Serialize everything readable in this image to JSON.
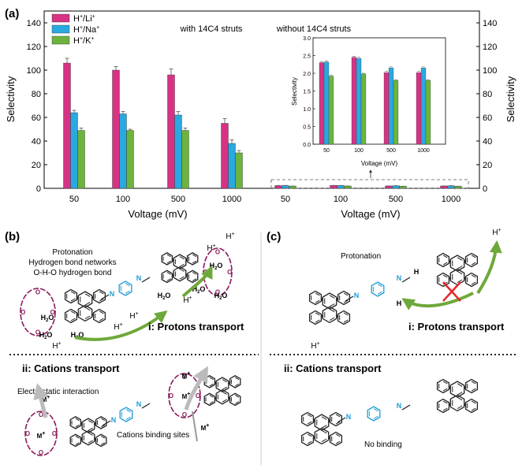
{
  "panel_labels": {
    "a": "(a)",
    "b": "(b)",
    "c": "(c)"
  },
  "colors": {
    "li": "#d63384",
    "na": "#2aa8e0",
    "k": "#6cb43f",
    "error": "#555555",
    "ring_purple": "#8b1a5c",
    "amine_blue": "#1f9bd7",
    "arrow_green": "#6fa83a",
    "cross_red": "#e8262a"
  },
  "chart_data": {
    "type": "bar",
    "ylabel": "Selectivity",
    "ylabel_right": "Selectivity",
    "xlabel_left": "Voltage (mV)",
    "xlabel_right": "Voltage (mV)",
    "ylim": [
      0,
      150
    ],
    "yticks": [
      0,
      20,
      40,
      60,
      80,
      100,
      120,
      140
    ],
    "categories": [
      "50",
      "100",
      "500",
      "1000"
    ],
    "groups": [
      {
        "label": "with 14C4 struts",
        "series": [
          {
            "name": "H+/Li+",
            "values": [
              106,
              100,
              96,
              55
            ],
            "errors": [
              4,
              3,
              5,
              4
            ]
          },
          {
            "name": "H+/Na+",
            "values": [
              64,
              63,
              62,
              38
            ],
            "errors": [
              2,
              2,
              3,
              3
            ]
          },
          {
            "name": "H+/K+",
            "values": [
              49,
              49,
              49,
              30
            ],
            "errors": [
              2,
              1,
              2,
              2
            ]
          }
        ]
      },
      {
        "label": "without 14C4 struts",
        "series": [
          {
            "name": "H+/Li+",
            "values": [
              2.3,
              2.45,
              2.02,
              2.02
            ],
            "errors": [
              0.03,
              0.03,
              0.03,
              0.03
            ]
          },
          {
            "name": "H+/Na+",
            "values": [
              2.32,
              2.42,
              2.15,
              2.15
            ],
            "errors": [
              0.03,
              0.03,
              0.03,
              0.03
            ]
          },
          {
            "name": "H+/K+",
            "values": [
              1.92,
              1.98,
              1.8,
              1.8
            ],
            "errors": [
              0.02,
              0.02,
              0.02,
              0.02
            ]
          }
        ]
      }
    ],
    "legend": {
      "placement": "top-left",
      "entries": [
        {
          "base": "H",
          "sup1": "+",
          "sep": "/",
          "ion": "Li",
          "sup2": "+"
        },
        {
          "base": "H",
          "sup1": "+",
          "sep": "/",
          "ion": "Na",
          "sup2": "+"
        },
        {
          "base": "H",
          "sup1": "+",
          "sep": "/",
          "ion": "K",
          "sup2": "+"
        }
      ]
    },
    "inset": {
      "ylabel": "Selectivity",
      "xlabel": "Voltage (mV)",
      "ylim": [
        0,
        3.0
      ],
      "yticks": [
        "0.0",
        "0.5",
        "1.0",
        "1.5",
        "2.0",
        "2.5",
        "3.0"
      ],
      "categories": [
        "50",
        "100",
        "500",
        "1000"
      ]
    }
  },
  "panel_b": {
    "protonation": "Protonation",
    "hydrogen_networks": "Hydrogen  bond networks",
    "oho_bond": "O-H-O hydrogen bond",
    "protons_title": "i: Protons transport",
    "cations_title": "ii: Cations transport",
    "electrostatic": "Electrostatic interaction",
    "binding_sites": "Cations binding sites",
    "h_plus": "H",
    "plus": "+",
    "water": "H",
    "water_sub": "2",
    "water_o": "O",
    "metal": "M",
    "n": "N",
    "h": "H",
    "o": "O"
  },
  "panel_c": {
    "protonation": "Protonation",
    "protons_title": "i: Protons transport",
    "cations_title": "ii: Cations transport",
    "no_binding": "No binding"
  }
}
